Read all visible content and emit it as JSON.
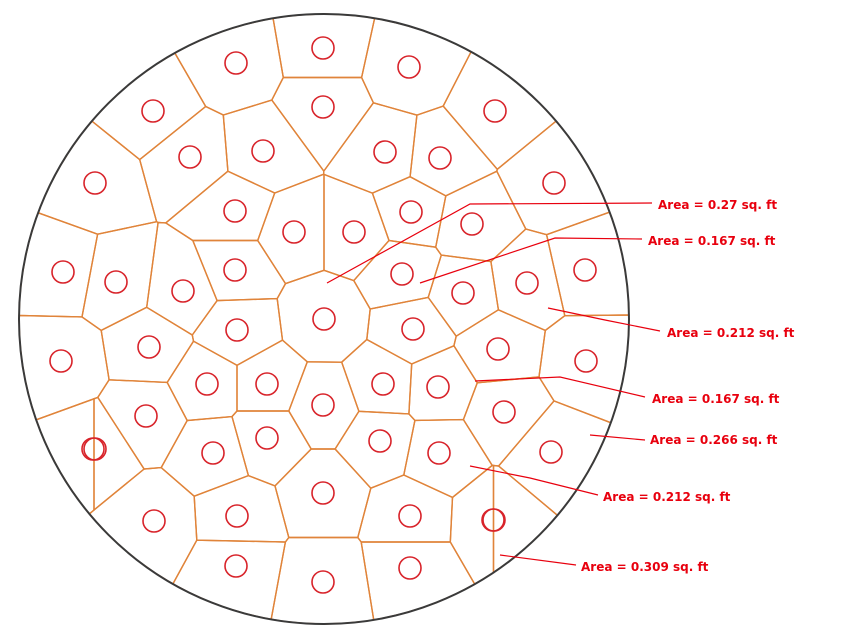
{
  "colors": {
    "boundary": "#3a3a3a",
    "cell_edge": "#e0843a",
    "bar": "#d8232a",
    "annotation": "#e8000e",
    "background": "#ffffff"
  },
  "labels": [
    {
      "id": "a1",
      "text": "Area = 0.27 sq. ft"
    },
    {
      "id": "a2",
      "text": "Area = 0.167 sq. ft"
    },
    {
      "id": "a3",
      "text": "Area = 0.212 sq. ft"
    },
    {
      "id": "a4",
      "text": "Area = 0.167 sq. ft"
    },
    {
      "id": "a5",
      "text": "Area = 0.266 sq. ft"
    },
    {
      "id": "a6",
      "text": "Area = 0.212 sq. ft"
    },
    {
      "id": "a7",
      "text": "Area = 0.309 sq. ft"
    }
  ]
}
